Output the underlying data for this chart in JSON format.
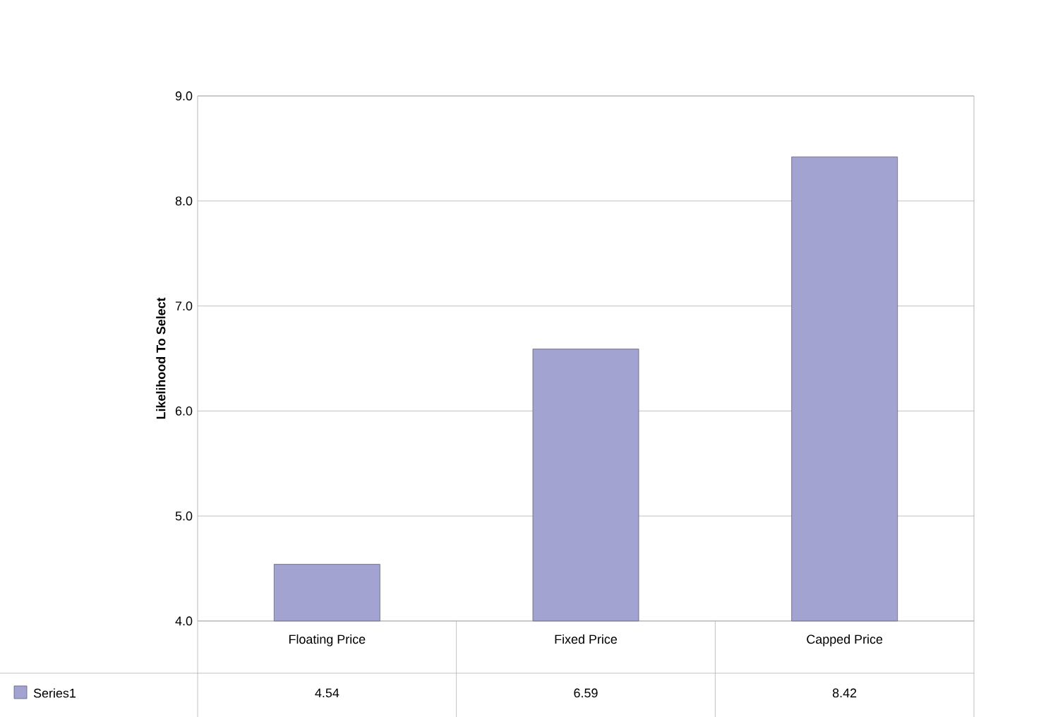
{
  "chart_data": {
    "type": "bar",
    "ylabel": "Likelihood To Select",
    "categories": [
      "Floating Price",
      "Fixed Price",
      "Capped Price"
    ],
    "series": [
      {
        "name": "Series1",
        "color": "#a3a3d1",
        "values": [
          4.54,
          6.59,
          8.42
        ]
      }
    ],
    "ylim": [
      4.0,
      9.0
    ],
    "yticks": [
      {
        "value": 4,
        "label": "4.0"
      },
      {
        "value": 5,
        "label": "5.0"
      },
      {
        "value": 6,
        "label": "6.0"
      },
      {
        "value": 7,
        "label": "7.0"
      },
      {
        "value": 8,
        "label": "8.0"
      },
      {
        "value": 9,
        "label": "9.0"
      }
    ],
    "grid": "y",
    "legend": "bottom left",
    "data_labels": true
  }
}
